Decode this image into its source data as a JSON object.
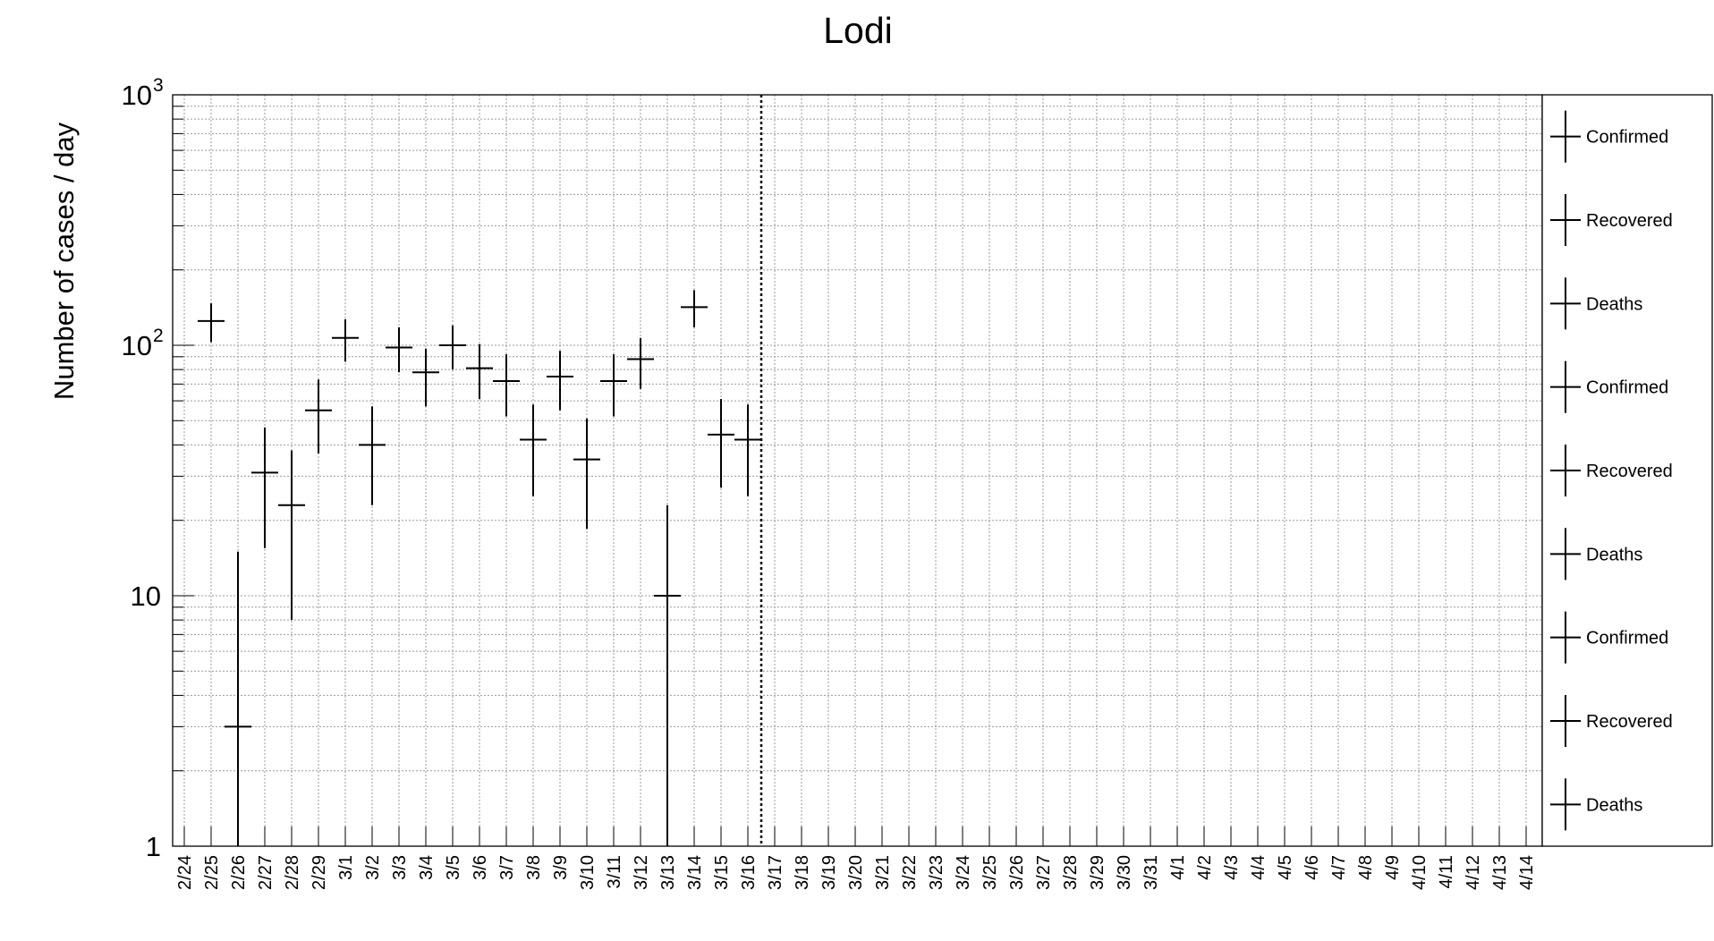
{
  "chart_data": {
    "type": "scatter",
    "title": "Lodi",
    "ylabel": "Number of cases / day",
    "xlabel": "",
    "yscale": "log",
    "ylim": [
      1,
      1000
    ],
    "y_tick_labels": [
      {
        "value": 1,
        "label": "1"
      },
      {
        "value": 10,
        "label": "10"
      },
      {
        "value": 100,
        "base": "10",
        "exp": "2"
      },
      {
        "value": 1000,
        "base": "10",
        "exp": "3"
      }
    ],
    "grid": true,
    "legend_position": "right",
    "categories": [
      "2/24",
      "2/25",
      "2/26",
      "2/27",
      "2/28",
      "2/29",
      "3/1",
      "3/2",
      "3/3",
      "3/4",
      "3/5",
      "3/6",
      "3/7",
      "3/8",
      "3/9",
      "3/10",
      "3/11",
      "3/12",
      "3/13",
      "3/14",
      "3/15",
      "3/16",
      "3/17",
      "3/18",
      "3/19",
      "3/20",
      "3/21",
      "3/22",
      "3/23",
      "3/24",
      "3/25",
      "3/26",
      "3/27",
      "3/28",
      "3/29",
      "3/30",
      "3/31",
      "4/1",
      "4/2",
      "4/3",
      "4/4",
      "4/5",
      "4/6",
      "4/7",
      "4/8",
      "4/9",
      "4/10",
      "4/11",
      "4/12",
      "4/13",
      "4/14"
    ],
    "marker_category": "3/16",
    "series": [
      {
        "name": "Confirmed",
        "points": [
          {
            "x": "2/25",
            "y": 125,
            "ylo": 103,
            "yhi": 147
          },
          {
            "x": "2/26",
            "y": 3,
            "ylo": 0.5,
            "yhi": 15
          },
          {
            "x": "2/27",
            "y": 31,
            "ylo": 15.5,
            "yhi": 47
          },
          {
            "x": "2/28",
            "y": 23,
            "ylo": 8,
            "yhi": 38
          },
          {
            "x": "2/29",
            "y": 55,
            "ylo": 37,
            "yhi": 73
          },
          {
            "x": "3/1",
            "y": 107,
            "ylo": 86,
            "yhi": 127
          },
          {
            "x": "3/2",
            "y": 40,
            "ylo": 23,
            "yhi": 57
          },
          {
            "x": "3/3",
            "y": 98,
            "ylo": 78,
            "yhi": 118
          },
          {
            "x": "3/4",
            "y": 78,
            "ylo": 57,
            "yhi": 97
          },
          {
            "x": "3/5",
            "y": 100,
            "ylo": 80,
            "yhi": 120
          },
          {
            "x": "3/6",
            "y": 81,
            "ylo": 61,
            "yhi": 101
          },
          {
            "x": "3/7",
            "y": 72,
            "ylo": 52,
            "yhi": 92
          },
          {
            "x": "3/8",
            "y": 42,
            "ylo": 25,
            "yhi": 58
          },
          {
            "x": "3/9",
            "y": 75,
            "ylo": 55,
            "yhi": 95
          },
          {
            "x": "3/10",
            "y": 35,
            "ylo": 18.5,
            "yhi": 51
          },
          {
            "x": "3/11",
            "y": 72,
            "ylo": 52,
            "yhi": 92
          },
          {
            "x": "3/12",
            "y": 88,
            "ylo": 67,
            "yhi": 107
          },
          {
            "x": "3/13",
            "y": 10,
            "ylo": 0.5,
            "yhi": 23
          },
          {
            "x": "3/14",
            "y": 142,
            "ylo": 118,
            "yhi": 166
          },
          {
            "x": "3/15",
            "y": 44,
            "ylo": 27,
            "yhi": 61
          },
          {
            "x": "3/16",
            "y": 42,
            "ylo": 25,
            "yhi": 58
          }
        ]
      }
    ],
    "legend": [
      "Confirmed",
      "Recovered",
      "Deaths",
      "Confirmed",
      "Recovered",
      "Deaths",
      "Confirmed",
      "Recovered",
      "Deaths"
    ]
  }
}
